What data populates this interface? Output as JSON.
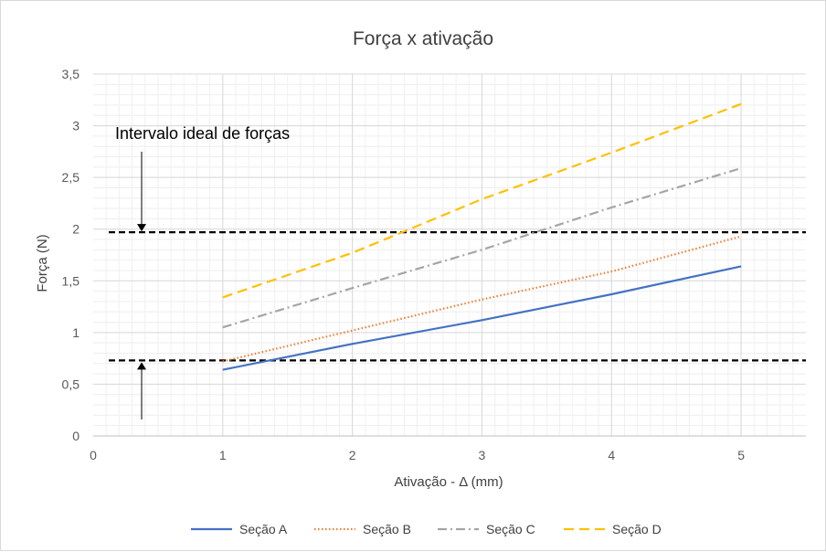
{
  "chart_data": {
    "type": "line",
    "title": "Força x ativação",
    "xlabel": "Ativação - Δ (mm)",
    "ylabel": "Força (N)",
    "xlim": [
      0,
      5.5
    ],
    "ylim": [
      0,
      3.5
    ],
    "x_ticks": [
      0,
      1,
      2,
      3,
      4,
      5
    ],
    "x_tick_labels": [
      "0",
      "1",
      "2",
      "3",
      "4",
      "5"
    ],
    "y_ticks": [
      0,
      0.5,
      1,
      1.5,
      2,
      2.5,
      3,
      3.5
    ],
    "y_tick_labels": [
      "0",
      "0,5",
      "1",
      "1,5",
      "2",
      "2,5",
      "3",
      "3,5"
    ],
    "grid": true,
    "legend_position": "bottom",
    "series": [
      {
        "name": "Seção A",
        "x": [
          1,
          2,
          3,
          4,
          5
        ],
        "values": [
          0.64,
          0.89,
          1.12,
          1.37,
          1.64
        ],
        "color": "#4472c4",
        "dash": "solid"
      },
      {
        "name": "Seção B",
        "x": [
          1,
          2,
          3,
          4,
          5
        ],
        "values": [
          0.72,
          1.02,
          1.32,
          1.59,
          1.93
        ],
        "color": "#ed7d31",
        "dash": "dotted"
      },
      {
        "name": "Seção C",
        "x": [
          1,
          2,
          3,
          4,
          5
        ],
        "values": [
          1.05,
          1.43,
          1.8,
          2.21,
          2.59
        ],
        "color": "#a5a5a5",
        "dash": "dash-dot"
      },
      {
        "name": "Seção D",
        "x": [
          1,
          2,
          3,
          4,
          5
        ],
        "values": [
          1.34,
          1.77,
          2.29,
          2.74,
          3.21
        ],
        "color": "#ffc000",
        "dash": "dashed"
      }
    ],
    "reference_lines": [
      {
        "y": 1.97,
        "color": "#000000"
      },
      {
        "y": 0.73,
        "color": "#000000"
      }
    ],
    "annotation": {
      "text": "Intervalo ideal de forças",
      "arrow_targets_y": [
        1.97,
        0.73
      ]
    }
  }
}
